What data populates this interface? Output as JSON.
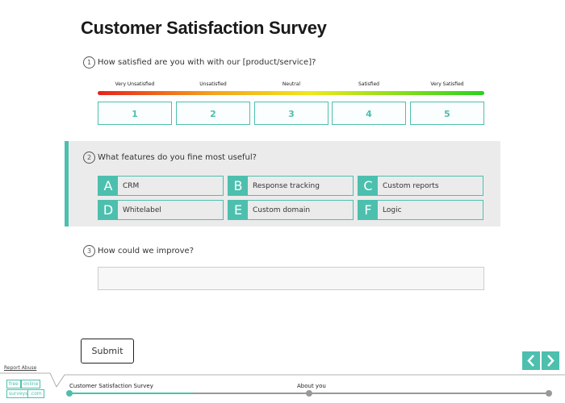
{
  "header": {
    "title": "Customer Satisfaction Survey"
  },
  "questions": [
    {
      "number": "1",
      "text": "How satisfied are you with with our [product/service]?",
      "scale_labels": [
        "Very Unsatisfied",
        "Unsatisfied",
        "Neutral",
        "Satisfied",
        "Very Satisfied"
      ],
      "options": [
        "1",
        "2",
        "3",
        "4",
        "5"
      ]
    },
    {
      "number": "2",
      "text": "What features do you fine most useful?",
      "options": [
        {
          "letter": "A",
          "label": "CRM"
        },
        {
          "letter": "B",
          "label": "Response tracking"
        },
        {
          "letter": "C",
          "label": "Custom reports"
        },
        {
          "letter": "D",
          "label": "Whitelabel"
        },
        {
          "letter": "E",
          "label": "Custom domain"
        },
        {
          "letter": "F",
          "label": "Logic"
        }
      ]
    },
    {
      "number": "3",
      "text": "How could we improve?"
    }
  ],
  "submit": "Submit",
  "footer": {
    "report_abuse": "Report Abuse",
    "logo": [
      "free",
      "online",
      "surveys",
      ".com"
    ],
    "progress": [
      "Customer Satisfaction Survey",
      "About you"
    ]
  }
}
